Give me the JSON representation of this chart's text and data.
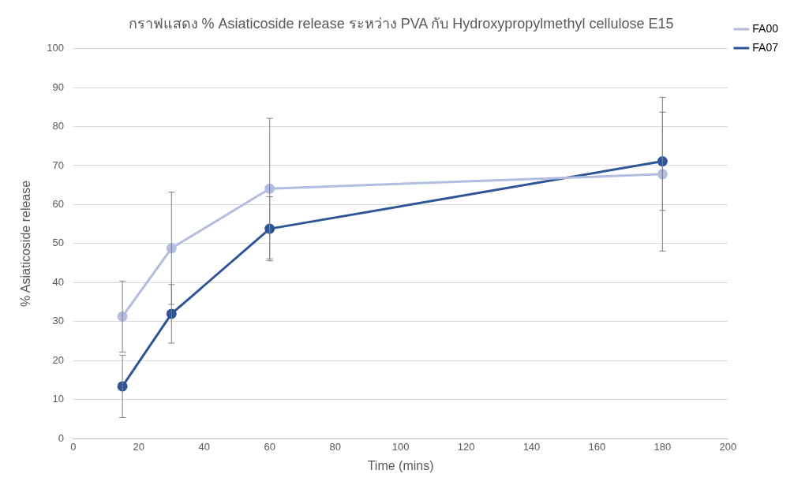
{
  "chart_data": {
    "type": "line",
    "title": "กราฟแสดง % Asiaticoside release ระหว่าง PVA กับ Hydroxypropylmethyl cellulose E15",
    "xlabel": "Time (mins)",
    "ylabel": "% Asiaticoside release",
    "x": [
      15,
      30,
      60,
      180
    ],
    "series": [
      {
        "name": "FA00",
        "color": "#b4bde0",
        "values": [
          31.3,
          48.8,
          64.1,
          67.8
        ],
        "errors": [
          9.1,
          14.4,
          18,
          19.7
        ]
      },
      {
        "name": "FA07",
        "color": "#2f5597",
        "values": [
          13.4,
          32,
          53.8,
          71.1
        ],
        "errors": [
          8,
          7.5,
          8.2,
          12.6
        ]
      }
    ],
    "xlim": [
      0,
      200
    ],
    "xticks": [
      0,
      20,
      40,
      60,
      80,
      100,
      120,
      140,
      160,
      180,
      200
    ],
    "ylim": [
      0,
      100
    ],
    "yticks": [
      0,
      10,
      20,
      30,
      40,
      50,
      60,
      70,
      80,
      90,
      100
    ],
    "grid": "y",
    "legend": "top right",
    "marker": "circle",
    "line_style": "solid"
  }
}
